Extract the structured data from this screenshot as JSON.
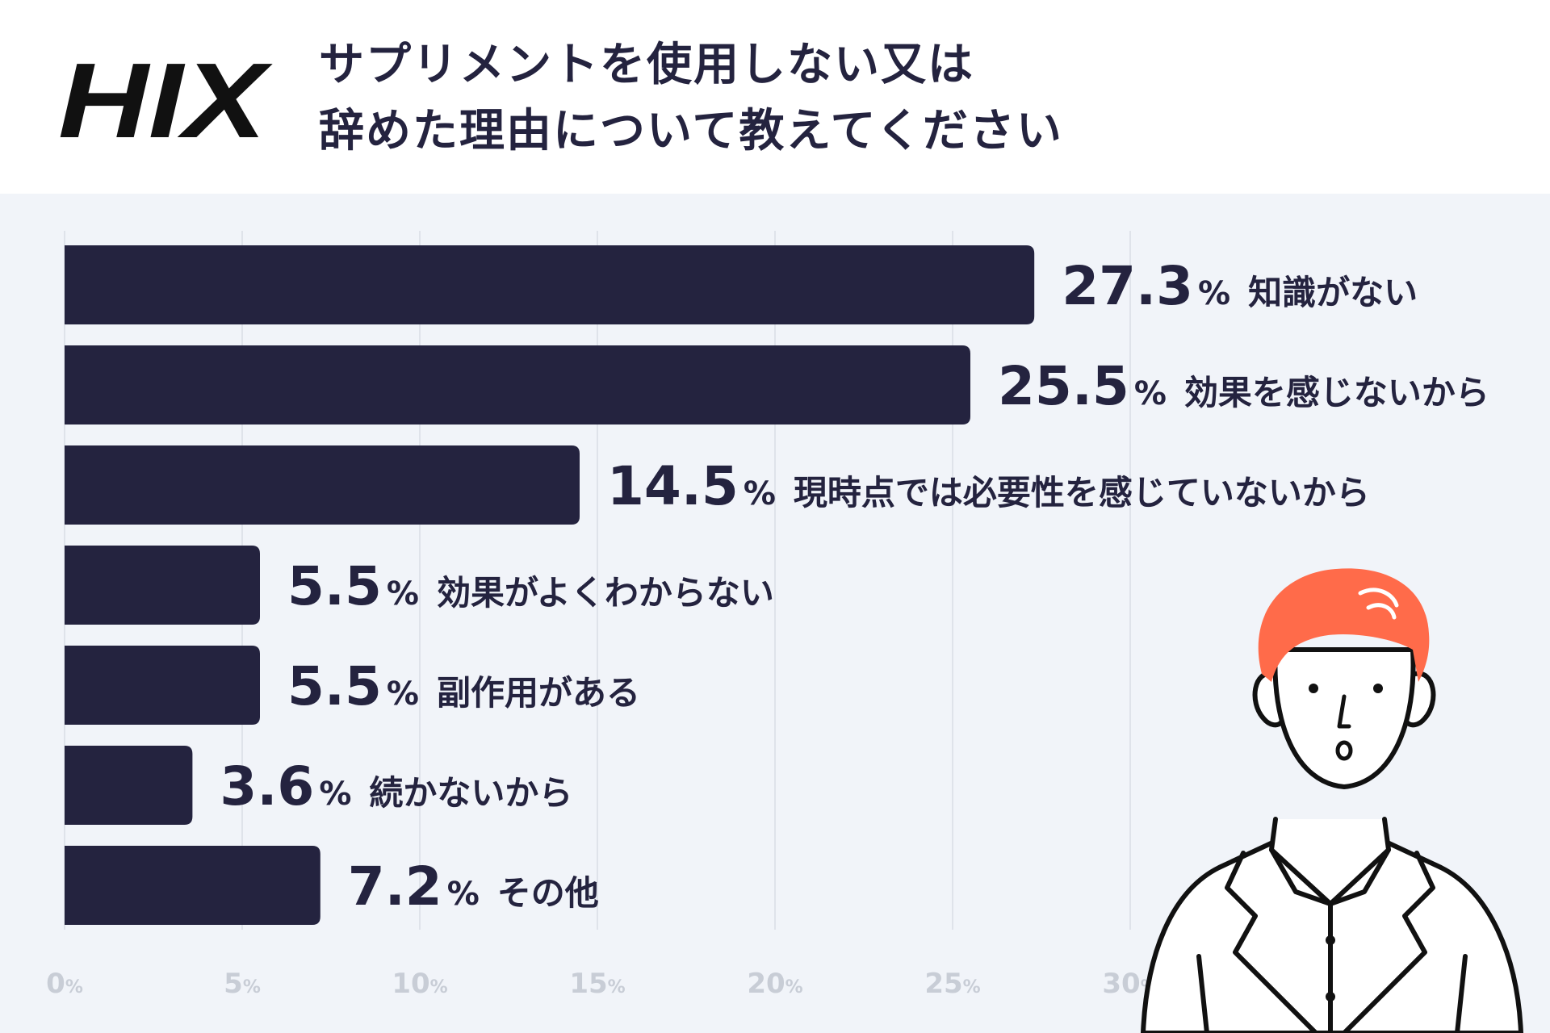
{
  "brand": {
    "logo_text": "HIX"
  },
  "chart_data": {
    "type": "bar",
    "orientation": "horizontal",
    "title": [
      "サプリメントを使用しない又は",
      "辞めた理由について教えてください"
    ],
    "categories": [
      "知識がない",
      "効果を感じないから",
      "現時点では必要性を感じていないから",
      "効果がよくわからない",
      "副作用がある",
      "続かないから",
      "その他"
    ],
    "values": [
      27.3,
      25.5,
      14.5,
      5.5,
      5.5,
      3.6,
      7.2
    ],
    "value_labels": [
      "27.3",
      "25.5",
      "14.5",
      "5.5",
      "5.5",
      "3.6",
      "7.2"
    ],
    "unit": "%",
    "x_ticks": [
      0,
      5,
      10,
      15,
      20,
      25,
      30
    ],
    "xlim": [
      0,
      40
    ],
    "grid": true,
    "legend": "none"
  },
  "colors": {
    "bar": "#24233f",
    "grid": "#dfe3ea",
    "tick_label": "#c8cdd6",
    "background": "#f1f4f9",
    "hair": "#ff6b4a"
  },
  "illustration": {
    "icon": "surprised-man-icon"
  }
}
